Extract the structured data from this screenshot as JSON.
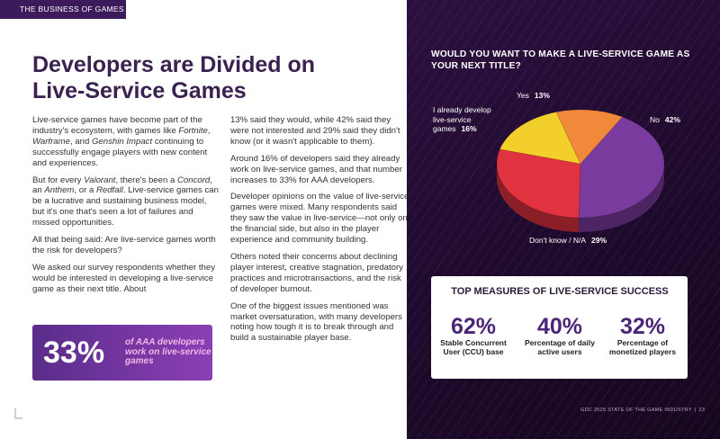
{
  "section_tag": "THE BUSINESS OF GAMES",
  "title_line1": "Developers are Divided on",
  "title_line2": "Live-Service Games",
  "col1": {
    "p1_a": "Live-service games have become part of the industry's ecosystem, with games like ",
    "p1_em1": "Fortnite",
    "p1_b": ", ",
    "p1_em2": "Warframe",
    "p1_c": ", and ",
    "p1_em3": "Genshin Impact",
    "p1_d": " continuing to successfully engage players with new content and experiences.",
    "p2_a": "But for every ",
    "p2_em1": "Valorant",
    "p2_b": ", there's been a ",
    "p2_em2": "Concord",
    "p2_c": ", an ",
    "p2_em3": "Anthem",
    "p2_d": ", or a ",
    "p2_em4": "Redfall",
    "p2_e": ". Live-service games can be a lucrative and sustaining business model, but it's one that's seen a lot of failures and missed opportunities.",
    "p3": "All that being said: Are live-service games worth the risk for developers?",
    "p4": "We asked our survey respondents whether they would be interested in developing a live-service game as their next title. About"
  },
  "col2": {
    "p1": "13% said they would, while 42% said they were not interested and 29% said they didn't know (or it wasn't applicable to them).",
    "p2": "Around 16% of developers said they already work on live-service games, and that number increases to 33% for AAA developers.",
    "p3": "Developer opinions on the value of live-service games were mixed. Many respondents said they saw the value in live-service—not only on the financial side, but also in the player experience and community building.",
    "p4": "Others noted their concerns about declining player interest, creative stagnation, predatory practices and microtransactions, and the risk of developer burnout.",
    "p5": "One of the biggest issues mentioned was market oversaturation, with many developers noting how tough it is to break through and build a sustainable player base."
  },
  "callout": {
    "number": "33%",
    "text": "of AAA developers work on live-service games"
  },
  "chart_data": {
    "type": "pie",
    "title": "WOULD YOU WANT TO MAKE A LIVE-SERVICE GAME AS YOUR NEXT TITLE?",
    "series": [
      {
        "label": "No",
        "value": 42,
        "display": "42%",
        "color": "#7a3b9e"
      },
      {
        "label": "Don't know / N/A",
        "value": 29,
        "display": "29%",
        "color": "#e0323f"
      },
      {
        "label": "I already develop live-service games",
        "value": 16,
        "display": "16%",
        "color": "#f2cf2a"
      },
      {
        "label": "Yes",
        "value": 13,
        "display": "13%",
        "color": "#f08a3a"
      }
    ]
  },
  "measures": {
    "title": "TOP MEASURES OF LIVE-SERVICE SUCCESS",
    "items": [
      {
        "value": "62%",
        "label": "Stable Concurrent User (CCU) base"
      },
      {
        "value": "40%",
        "label": "Percentage of daily active users"
      },
      {
        "value": "32%",
        "label": "Percentage of monetized players"
      }
    ]
  },
  "footer": {
    "report": "GDC 2025 STATE OF THE GAME INDUSTRY",
    "page": "23"
  }
}
